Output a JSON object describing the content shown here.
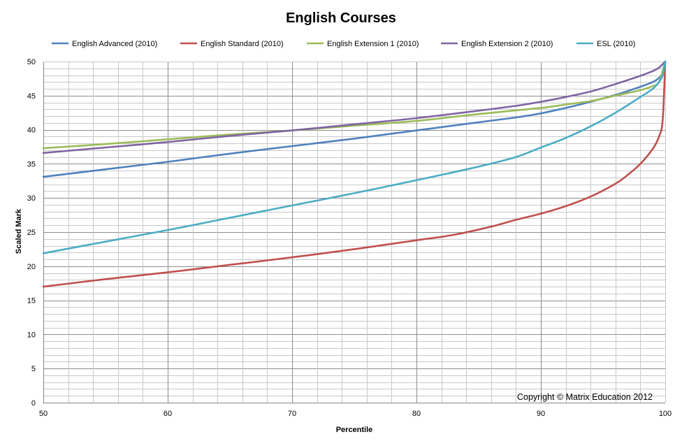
{
  "chart_data": {
    "type": "line",
    "title": "English Courses",
    "xlabel": "Percentile",
    "ylabel": "Scaled Mark",
    "xlim": [
      50,
      100
    ],
    "ylim": [
      0,
      50
    ],
    "x_ticks": [
      50,
      60,
      70,
      80,
      90,
      100
    ],
    "y_ticks": [
      0,
      5,
      10,
      15,
      20,
      25,
      30,
      35,
      40,
      45,
      50
    ],
    "grid": "on",
    "legend_position": "top",
    "annotation": "Copyright © Matrix Education 2012",
    "series": [
      {
        "name": "English Advanced (2010)",
        "color": "#4f81bd",
        "points": [
          [
            50,
            33.1
          ],
          [
            55,
            34.2
          ],
          [
            60,
            35.3
          ],
          [
            65,
            36.5
          ],
          [
            70,
            37.6
          ],
          [
            75,
            38.7
          ],
          [
            80,
            39.9
          ],
          [
            85,
            41.1
          ],
          [
            88,
            41.8
          ],
          [
            90,
            42.4
          ],
          [
            92,
            43.2
          ],
          [
            94,
            44.1
          ],
          [
            96,
            45.1
          ],
          [
            98,
            46.3
          ],
          [
            99,
            47.0
          ],
          [
            99.5,
            47.6
          ],
          [
            99.8,
            48.4
          ],
          [
            100,
            50
          ]
        ]
      },
      {
        "name": "English Standard (2010)",
        "color": "#c0504d",
        "points": [
          [
            50,
            17.0
          ],
          [
            55,
            18.1
          ],
          [
            60,
            19.1
          ],
          [
            65,
            20.2
          ],
          [
            70,
            21.3
          ],
          [
            75,
            22.5
          ],
          [
            80,
            23.8
          ],
          [
            83,
            24.6
          ],
          [
            86,
            25.8
          ],
          [
            88,
            26.8
          ],
          [
            90,
            27.7
          ],
          [
            92,
            28.8
          ],
          [
            94,
            30.2
          ],
          [
            96,
            32.1
          ],
          [
            97,
            33.4
          ],
          [
            98,
            35.0
          ],
          [
            99,
            37.2
          ],
          [
            99.5,
            39.0
          ],
          [
            99.8,
            41.5
          ],
          [
            100,
            50
          ]
        ]
      },
      {
        "name": "English Extension 1 (2010)",
        "color": "#9bbb59",
        "points": [
          [
            50,
            37.3
          ],
          [
            55,
            37.9
          ],
          [
            60,
            38.6
          ],
          [
            65,
            39.3
          ],
          [
            70,
            39.9
          ],
          [
            75,
            40.6
          ],
          [
            80,
            41.3
          ],
          [
            85,
            42.3
          ],
          [
            90,
            43.2
          ],
          [
            92,
            43.7
          ],
          [
            94,
            44.2
          ],
          [
            96,
            45.0
          ],
          [
            98,
            45.8
          ],
          [
            99,
            46.4
          ],
          [
            99.5,
            47.0
          ],
          [
            100,
            50
          ]
        ]
      },
      {
        "name": "English Extension 2 (2010)",
        "color": "#8064a2",
        "points": [
          [
            50,
            36.6
          ],
          [
            55,
            37.4
          ],
          [
            60,
            38.2
          ],
          [
            65,
            39.1
          ],
          [
            70,
            39.9
          ],
          [
            75,
            40.8
          ],
          [
            80,
            41.7
          ],
          [
            85,
            42.8
          ],
          [
            88,
            43.5
          ],
          [
            90,
            44.1
          ],
          [
            92,
            44.8
          ],
          [
            94,
            45.6
          ],
          [
            96,
            46.7
          ],
          [
            98,
            47.9
          ],
          [
            99,
            48.6
          ],
          [
            99.5,
            49.1
          ],
          [
            100,
            50
          ]
        ]
      },
      {
        "name": "ESL (2010)",
        "color": "#4bacc6",
        "points": [
          [
            50,
            21.9
          ],
          [
            55,
            23.6
          ],
          [
            60,
            25.3
          ],
          [
            65,
            27.1
          ],
          [
            70,
            28.9
          ],
          [
            75,
            30.7
          ],
          [
            80,
            32.6
          ],
          [
            85,
            34.6
          ],
          [
            88,
            36.0
          ],
          [
            90,
            37.4
          ],
          [
            92,
            38.8
          ],
          [
            94,
            40.5
          ],
          [
            96,
            42.5
          ],
          [
            98,
            44.8
          ],
          [
            99,
            46.0
          ],
          [
            99.5,
            47.0
          ],
          [
            99.8,
            48.0
          ],
          [
            100,
            50
          ]
        ]
      }
    ]
  }
}
